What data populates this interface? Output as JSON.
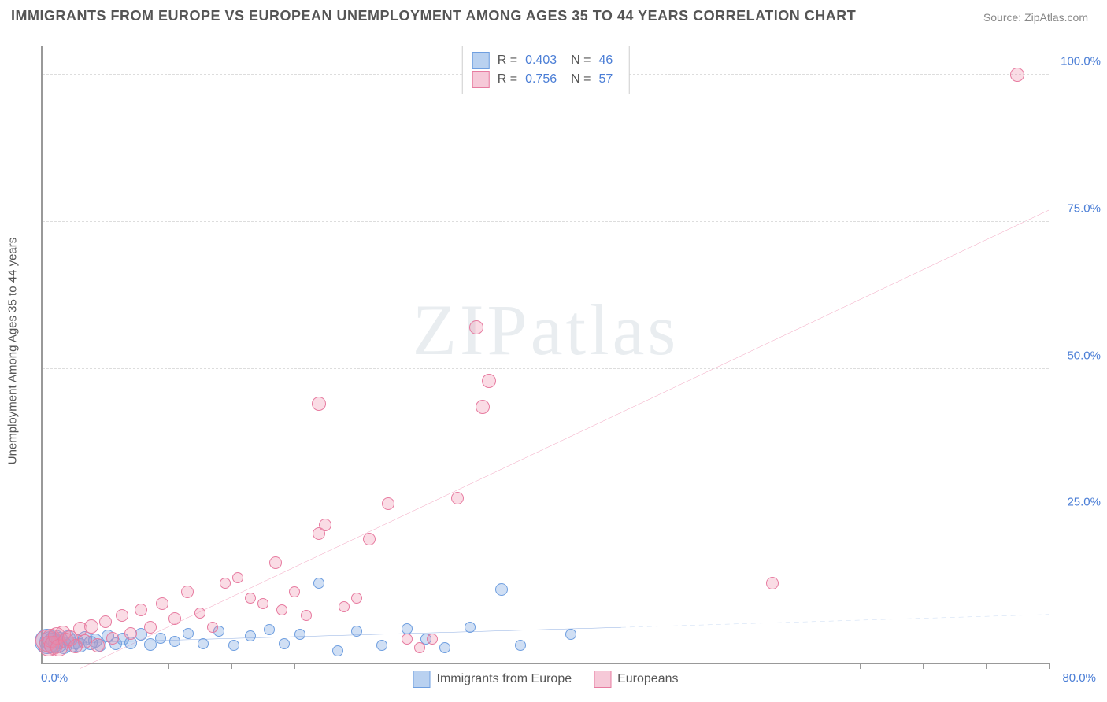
{
  "title": "IMMIGRANTS FROM EUROPE VS EUROPEAN UNEMPLOYMENT AMONG AGES 35 TO 44 YEARS CORRELATION CHART",
  "source": "Source: ZipAtlas.com",
  "ylabel": "Unemployment Among Ages 35 to 44 years",
  "watermark": "ZIPatlas",
  "chart": {
    "type": "scatter-with-regression",
    "xlim": [
      0,
      80
    ],
    "ylim": [
      0,
      105
    ],
    "xtick_start": "0.0%",
    "xtick_end": "80.0%",
    "xtick_positions_pct": [
      6.25,
      12.5,
      18.75,
      25,
      31.25,
      37.5,
      43.75,
      50,
      56.25,
      62.5,
      68.75,
      75,
      81.25,
      87.5,
      93.75,
      100
    ],
    "yticks": [
      {
        "v": 25,
        "label": "25.0%"
      },
      {
        "v": 50,
        "label": "50.0%"
      },
      {
        "v": 75,
        "label": "75.0%"
      },
      {
        "v": 100,
        "label": "100.0%"
      }
    ],
    "grid_color": "#dddddd",
    "axis_color": "#999999",
    "background_color": "#ffffff",
    "series": [
      {
        "id": "immigrants",
        "label": "Immigrants from Europe",
        "color_fill": "rgba(119,162,224,0.35)",
        "color_stroke": "#6f9fe0",
        "swatch_fill": "#b9d1f0",
        "swatch_border": "#6f9fe0",
        "R": "0.403",
        "N": "46",
        "marker_base_r": 7,
        "reg_line": {
          "x1": 0,
          "y1": 3.2,
          "x2": 46,
          "y2": 6.0,
          "color": "#2f69c9",
          "width": 2.2
        },
        "reg_extend": {
          "x1": 46,
          "y1": 6.0,
          "x2": 80,
          "y2": 8.2,
          "color": "#6f9fe0",
          "width": 1.5,
          "dash": "6 5"
        },
        "points": [
          {
            "x": 0.4,
            "y": 3.6,
            "r": 16
          },
          {
            "x": 0.6,
            "y": 3.5,
            "r": 14
          },
          {
            "x": 0.8,
            "y": 3.4,
            "r": 13
          },
          {
            "x": 1.0,
            "y": 4.0,
            "r": 12
          },
          {
            "x": 1.2,
            "y": 3.2,
            "r": 12
          },
          {
            "x": 1.4,
            "y": 3.8,
            "r": 11
          },
          {
            "x": 1.7,
            "y": 3.0,
            "r": 11
          },
          {
            "x": 2.0,
            "y": 4.2,
            "r": 10
          },
          {
            "x": 2.3,
            "y": 3.1,
            "r": 10
          },
          {
            "x": 2.6,
            "y": 3.6,
            "r": 10
          },
          {
            "x": 3.0,
            "y": 2.9,
            "r": 9
          },
          {
            "x": 3.4,
            "y": 4.1,
            "r": 9
          },
          {
            "x": 3.8,
            "y": 3.3,
            "r": 9
          },
          {
            "x": 4.2,
            "y": 3.8,
            "r": 9
          },
          {
            "x": 4.6,
            "y": 3.0,
            "r": 8
          },
          {
            "x": 5.2,
            "y": 4.5,
            "r": 8
          },
          {
            "x": 5.8,
            "y": 3.2,
            "r": 8
          },
          {
            "x": 6.4,
            "y": 4.0,
            "r": 8
          },
          {
            "x": 7.0,
            "y": 3.4,
            "r": 8
          },
          {
            "x": 7.8,
            "y": 4.8,
            "r": 8
          },
          {
            "x": 8.6,
            "y": 3.1,
            "r": 8
          },
          {
            "x": 9.4,
            "y": 4.2,
            "r": 7
          },
          {
            "x": 10.5,
            "y": 3.6,
            "r": 7
          },
          {
            "x": 11.6,
            "y": 5.0,
            "r": 7
          },
          {
            "x": 12.8,
            "y": 3.2,
            "r": 7
          },
          {
            "x": 14.0,
            "y": 5.4,
            "r": 7
          },
          {
            "x": 15.2,
            "y": 3.0,
            "r": 7
          },
          {
            "x": 16.5,
            "y": 4.6,
            "r": 7
          },
          {
            "x": 18.0,
            "y": 5.6,
            "r": 7
          },
          {
            "x": 19.2,
            "y": 3.2,
            "r": 7
          },
          {
            "x": 20.5,
            "y": 4.8,
            "r": 7
          },
          {
            "x": 22.0,
            "y": 13.5,
            "r": 7
          },
          {
            "x": 23.5,
            "y": 2.0,
            "r": 7
          },
          {
            "x": 25.0,
            "y": 5.4,
            "r": 7
          },
          {
            "x": 27.0,
            "y": 3.0,
            "r": 7
          },
          {
            "x": 29.0,
            "y": 5.8,
            "r": 7
          },
          {
            "x": 30.5,
            "y": 4.0,
            "r": 7
          },
          {
            "x": 32.0,
            "y": 2.6,
            "r": 7
          },
          {
            "x": 34.0,
            "y": 6.0,
            "r": 7
          },
          {
            "x": 38.0,
            "y": 3.0,
            "r": 7
          },
          {
            "x": 42.0,
            "y": 4.8,
            "r": 7
          },
          {
            "x": 36.5,
            "y": 12.5,
            "r": 8
          }
        ]
      },
      {
        "id": "europeans",
        "label": "Europeans",
        "color_fill": "rgba(240,140,170,0.30)",
        "color_stroke": "#e77ba0",
        "swatch_fill": "#f6c9d8",
        "swatch_border": "#e77ba0",
        "R": "0.756",
        "N": "57",
        "marker_base_r": 7,
        "reg_line": {
          "x1": 3,
          "y1": -1,
          "x2": 80,
          "y2": 77,
          "color": "#e54f84",
          "width": 2.2
        },
        "points": [
          {
            "x": 0.3,
            "y": 3.8,
            "r": 14
          },
          {
            "x": 0.5,
            "y": 2.8,
            "r": 13
          },
          {
            "x": 0.7,
            "y": 4.2,
            "r": 12
          },
          {
            "x": 0.9,
            "y": 3.0,
            "r": 12
          },
          {
            "x": 1.1,
            "y": 4.6,
            "r": 11
          },
          {
            "x": 1.3,
            "y": 2.6,
            "r": 11
          },
          {
            "x": 1.6,
            "y": 5.0,
            "r": 10
          },
          {
            "x": 1.9,
            "y": 3.8,
            "r": 10
          },
          {
            "x": 2.2,
            "y": 4.2,
            "r": 10
          },
          {
            "x": 2.6,
            "y": 2.8,
            "r": 9
          },
          {
            "x": 3.0,
            "y": 5.8,
            "r": 9
          },
          {
            "x": 3.4,
            "y": 3.6,
            "r": 9
          },
          {
            "x": 3.9,
            "y": 6.2,
            "r": 9
          },
          {
            "x": 4.4,
            "y": 3.0,
            "r": 9
          },
          {
            "x": 5.0,
            "y": 7.0,
            "r": 8
          },
          {
            "x": 5.6,
            "y": 4.2,
            "r": 8
          },
          {
            "x": 6.3,
            "y": 8.0,
            "r": 8
          },
          {
            "x": 7.0,
            "y": 5.0,
            "r": 8
          },
          {
            "x": 7.8,
            "y": 9.0,
            "r": 8
          },
          {
            "x": 8.6,
            "y": 6.0,
            "r": 8
          },
          {
            "x": 9.5,
            "y": 10.0,
            "r": 8
          },
          {
            "x": 10.5,
            "y": 7.5,
            "r": 8
          },
          {
            "x": 11.5,
            "y": 12.0,
            "r": 8
          },
          {
            "x": 12.5,
            "y": 8.5,
            "r": 7
          },
          {
            "x": 13.5,
            "y": 6.0,
            "r": 7
          },
          {
            "x": 14.5,
            "y": 13.5,
            "r": 7
          },
          {
            "x": 15.5,
            "y": 14.5,
            "r": 7
          },
          {
            "x": 16.5,
            "y": 11.0,
            "r": 7
          },
          {
            "x": 17.5,
            "y": 10.0,
            "r": 7
          },
          {
            "x": 18.5,
            "y": 17.0,
            "r": 8
          },
          {
            "x": 19.0,
            "y": 9.0,
            "r": 7
          },
          {
            "x": 20.0,
            "y": 12.0,
            "r": 7
          },
          {
            "x": 21.0,
            "y": 8.0,
            "r": 7
          },
          {
            "x": 22.0,
            "y": 22.0,
            "r": 8
          },
          {
            "x": 22.5,
            "y": 23.5,
            "r": 8
          },
          {
            "x": 24.0,
            "y": 9.5,
            "r": 7
          },
          {
            "x": 25.0,
            "y": 11.0,
            "r": 7
          },
          {
            "x": 26.0,
            "y": 21.0,
            "r": 8
          },
          {
            "x": 27.5,
            "y": 27.0,
            "r": 8
          },
          {
            "x": 29.0,
            "y": 4.0,
            "r": 7
          },
          {
            "x": 30.0,
            "y": 2.5,
            "r": 7
          },
          {
            "x": 31.0,
            "y": 4.0,
            "r": 7
          },
          {
            "x": 33.0,
            "y": 28.0,
            "r": 8
          },
          {
            "x": 34.5,
            "y": 57.0,
            "r": 9
          },
          {
            "x": 35.0,
            "y": 43.5,
            "r": 9
          },
          {
            "x": 35.5,
            "y": 48.0,
            "r": 9
          },
          {
            "x": 22.0,
            "y": 44.0,
            "r": 9
          },
          {
            "x": 58.0,
            "y": 13.5,
            "r": 8
          },
          {
            "x": 77.5,
            "y": 100.0,
            "r": 9
          }
        ]
      }
    ]
  }
}
